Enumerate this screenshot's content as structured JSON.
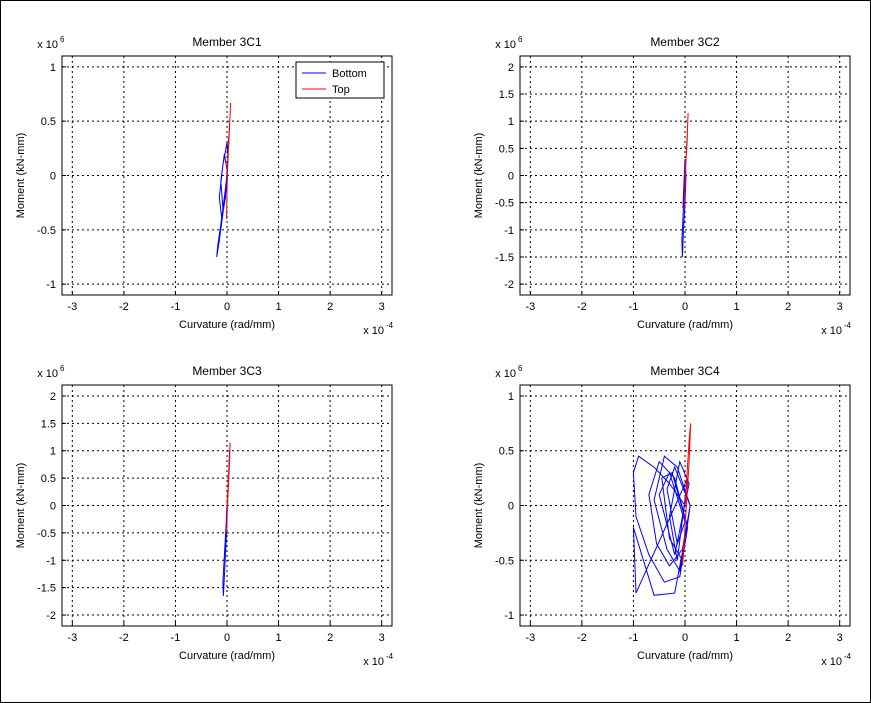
{
  "figure": {
    "background": "#ffffff",
    "axes_color": "#000000",
    "grid_style": "dotted",
    "series_colors": {
      "bottom": "#0000ff",
      "top": "#ff0000"
    }
  },
  "chart_data": [
    {
      "type": "line",
      "title": "Member 3C1",
      "xlabel": "Curvature (rad/mm)",
      "ylabel": "Moment (kN-mm)",
      "x_exponent_label": "x 10",
      "x_exponent": "-4",
      "y_exponent_label": "x 10",
      "y_exponent": "6",
      "xlim": [
        -3.2,
        3.2
      ],
      "ylim": [
        -1.1,
        1.1
      ],
      "xticks": [
        -3,
        -2,
        -1,
        0,
        1,
        2,
        3
      ],
      "xtick_labels": [
        "-3",
        "-2",
        "-1",
        "0",
        "1",
        "2",
        "3"
      ],
      "yticks": [
        -1,
        -0.5,
        0,
        0.5,
        1
      ],
      "ytick_labels": [
        "-1",
        "-0.5",
        "0",
        "0.5",
        "1"
      ],
      "grid": true,
      "legend": {
        "position": "top-right",
        "entries": [
          "Bottom",
          "Top"
        ]
      },
      "series": [
        {
          "name": "Bottom",
          "color": "#0000ff",
          "x": [
            0.0,
            -0.05,
            -0.12,
            -0.18,
            -0.2,
            -0.15,
            -0.08,
            -0.02,
            0.02,
            0.0,
            -0.08,
            -0.15,
            -0.1,
            -0.03,
            0.0,
            -0.05,
            -0.12,
            -0.08,
            0.0,
            0.03
          ],
          "y": [
            0.0,
            -0.2,
            -0.45,
            -0.65,
            -0.75,
            -0.6,
            -0.35,
            -0.1,
            0.15,
            0.3,
            0.1,
            -0.2,
            -0.4,
            -0.2,
            0.05,
            0.2,
            -0.05,
            -0.3,
            -0.1,
            0.35
          ]
        },
        {
          "name": "Top",
          "color": "#ff0000",
          "x": [
            0.0,
            0.02,
            0.04,
            0.06,
            0.07,
            0.05,
            0.03,
            0.01,
            0.0,
            -0.01,
            0.0
          ],
          "y": [
            0.0,
            0.2,
            0.4,
            0.55,
            0.67,
            0.45,
            0.25,
            0.05,
            -0.15,
            -0.4,
            -0.2
          ]
        }
      ]
    },
    {
      "type": "line",
      "title": "Member 3C2",
      "xlabel": "Curvature (rad/mm)",
      "ylabel": "Moment (kN-mm)",
      "x_exponent_label": "x 10",
      "x_exponent": "-4",
      "y_exponent_label": "x 10",
      "y_exponent": "6",
      "xlim": [
        -3.2,
        3.2
      ],
      "ylim": [
        -2.2,
        2.2
      ],
      "xticks": [
        -3,
        -2,
        -1,
        0,
        1,
        2,
        3
      ],
      "xtick_labels": [
        "-3",
        "-2",
        "-1",
        "0",
        "1",
        "2",
        "3"
      ],
      "yticks": [
        -2,
        -1.5,
        -1,
        -0.5,
        0,
        0.5,
        1,
        1.5,
        2
      ],
      "ytick_labels": [
        "-2",
        "-1.5",
        "-1",
        "-0.5",
        "0",
        "0.5",
        "1",
        "1.5",
        "2"
      ],
      "grid": true,
      "series": [
        {
          "name": "Bottom",
          "color": "#0000ff",
          "x": [
            0.0,
            -0.02,
            -0.04,
            -0.06,
            -0.05,
            -0.03,
            0.0,
            0.02,
            0.0,
            -0.04
          ],
          "y": [
            0.0,
            -0.4,
            -0.8,
            -1.2,
            -1.5,
            -1.0,
            -0.5,
            0.0,
            0.3,
            -0.6
          ]
        },
        {
          "name": "Top",
          "color": "#ff0000",
          "x": [
            0.0,
            0.02,
            0.04,
            0.05,
            0.06,
            0.04,
            0.02,
            0.0,
            -0.02,
            -0.01
          ],
          "y": [
            0.0,
            0.3,
            0.6,
            0.9,
            1.15,
            0.7,
            0.3,
            -0.2,
            -0.6,
            -0.3
          ]
        }
      ]
    },
    {
      "type": "line",
      "title": "Member 3C3",
      "xlabel": "Curvature (rad/mm)",
      "ylabel": "Moment (kN-mm)",
      "x_exponent_label": "x 10",
      "x_exponent": "-4",
      "y_exponent_label": "x 10",
      "y_exponent": "6",
      "xlim": [
        -3.2,
        3.2
      ],
      "ylim": [
        -2.2,
        2.2
      ],
      "xticks": [
        -3,
        -2,
        -1,
        0,
        1,
        2,
        3
      ],
      "xtick_labels": [
        "-3",
        "-2",
        "-1",
        "0",
        "1",
        "2",
        "3"
      ],
      "yticks": [
        -2,
        -1.5,
        -1,
        -0.5,
        0,
        0.5,
        1,
        1.5,
        2
      ],
      "ytick_labels": [
        "-2",
        "-1.5",
        "-1",
        "-0.5",
        "0",
        "0.5",
        "1",
        "1.5",
        "2"
      ],
      "grid": true,
      "series": [
        {
          "name": "Bottom",
          "color": "#0000ff",
          "x": [
            0.0,
            -0.02,
            -0.05,
            -0.08,
            -0.07,
            -0.04,
            -0.01,
            0.01,
            0.03,
            0.05,
            0.02,
            -0.03
          ],
          "y": [
            0.0,
            -0.4,
            -0.9,
            -1.4,
            -1.65,
            -1.1,
            -0.5,
            0.1,
            0.5,
            1.0,
            0.3,
            -0.6
          ]
        },
        {
          "name": "Top",
          "color": "#ff0000",
          "x": [
            0.0,
            0.02,
            0.04,
            0.06,
            0.05,
            0.03,
            0.01,
            -0.01,
            0.0
          ],
          "y": [
            0.0,
            0.3,
            0.7,
            1.15,
            0.8,
            0.4,
            0.0,
            -0.5,
            -0.2
          ]
        }
      ]
    },
    {
      "type": "line",
      "title": "Member 3C4",
      "xlabel": "Curvature (rad/mm)",
      "ylabel": "Moment (kN-mm)",
      "x_exponent_label": "x 10",
      "x_exponent": "-4",
      "y_exponent_label": "x 10",
      "y_exponent": "6",
      "xlim": [
        -3.2,
        3.2
      ],
      "ylim": [
        -1.1,
        1.1
      ],
      "xticks": [
        -3,
        -2,
        -1,
        0,
        1,
        2,
        3
      ],
      "xtick_labels": [
        "-3",
        "-2",
        "-1",
        "0",
        "1",
        "2",
        "3"
      ],
      "yticks": [
        -1,
        -0.5,
        0,
        0.5,
        1
      ],
      "ytick_labels": [
        "-1",
        "-0.5",
        "0",
        "0.5",
        "1"
      ],
      "grid": true,
      "series": [
        {
          "name": "Bottom",
          "color": "#0000ff",
          "x": [
            0.0,
            -0.3,
            -0.6,
            -0.9,
            -1.0,
            -0.95,
            -0.7,
            -0.4,
            -0.1,
            0.05,
            -0.2,
            -0.5,
            -0.7,
            -0.55,
            -0.3,
            -0.05,
            0.1,
            -0.15,
            -0.4,
            -0.6,
            -0.35,
            -0.1,
            0.05,
            -0.25,
            -0.45,
            -0.3,
            -0.05,
            0.1,
            -0.2,
            -0.35,
            -0.15,
            0.0,
            -0.3,
            -0.5,
            -0.2,
            0.08,
            -0.1,
            -0.3,
            -0.15,
            0.05,
            -0.95,
            -1.0,
            -0.6,
            -0.2,
            0.0
          ],
          "y": [
            0.0,
            0.2,
            0.35,
            0.45,
            0.3,
            -0.1,
            -0.45,
            -0.7,
            -0.65,
            -0.2,
            0.25,
            0.4,
            0.1,
            -0.35,
            -0.55,
            -0.4,
            0.0,
            0.35,
            0.45,
            0.05,
            -0.4,
            -0.6,
            -0.2,
            0.3,
            0.25,
            -0.3,
            -0.5,
            0.0,
            0.35,
            0.15,
            -0.35,
            -0.15,
            0.3,
            0.1,
            -0.45,
            0.2,
            0.4,
            -0.1,
            -0.5,
            0.25,
            -0.8,
            -0.2,
            -0.82,
            -0.8,
            -0.3
          ]
        },
        {
          "name": "Top",
          "color": "#ff0000",
          "x": [
            0.0,
            0.03,
            0.06,
            0.09,
            0.11,
            0.08,
            0.04,
            0.0,
            -0.03,
            -0.05,
            -0.02
          ],
          "y": [
            0.0,
            0.2,
            0.45,
            0.65,
            0.75,
            0.4,
            0.1,
            -0.2,
            -0.45,
            -0.55,
            -0.3
          ]
        }
      ]
    }
  ]
}
